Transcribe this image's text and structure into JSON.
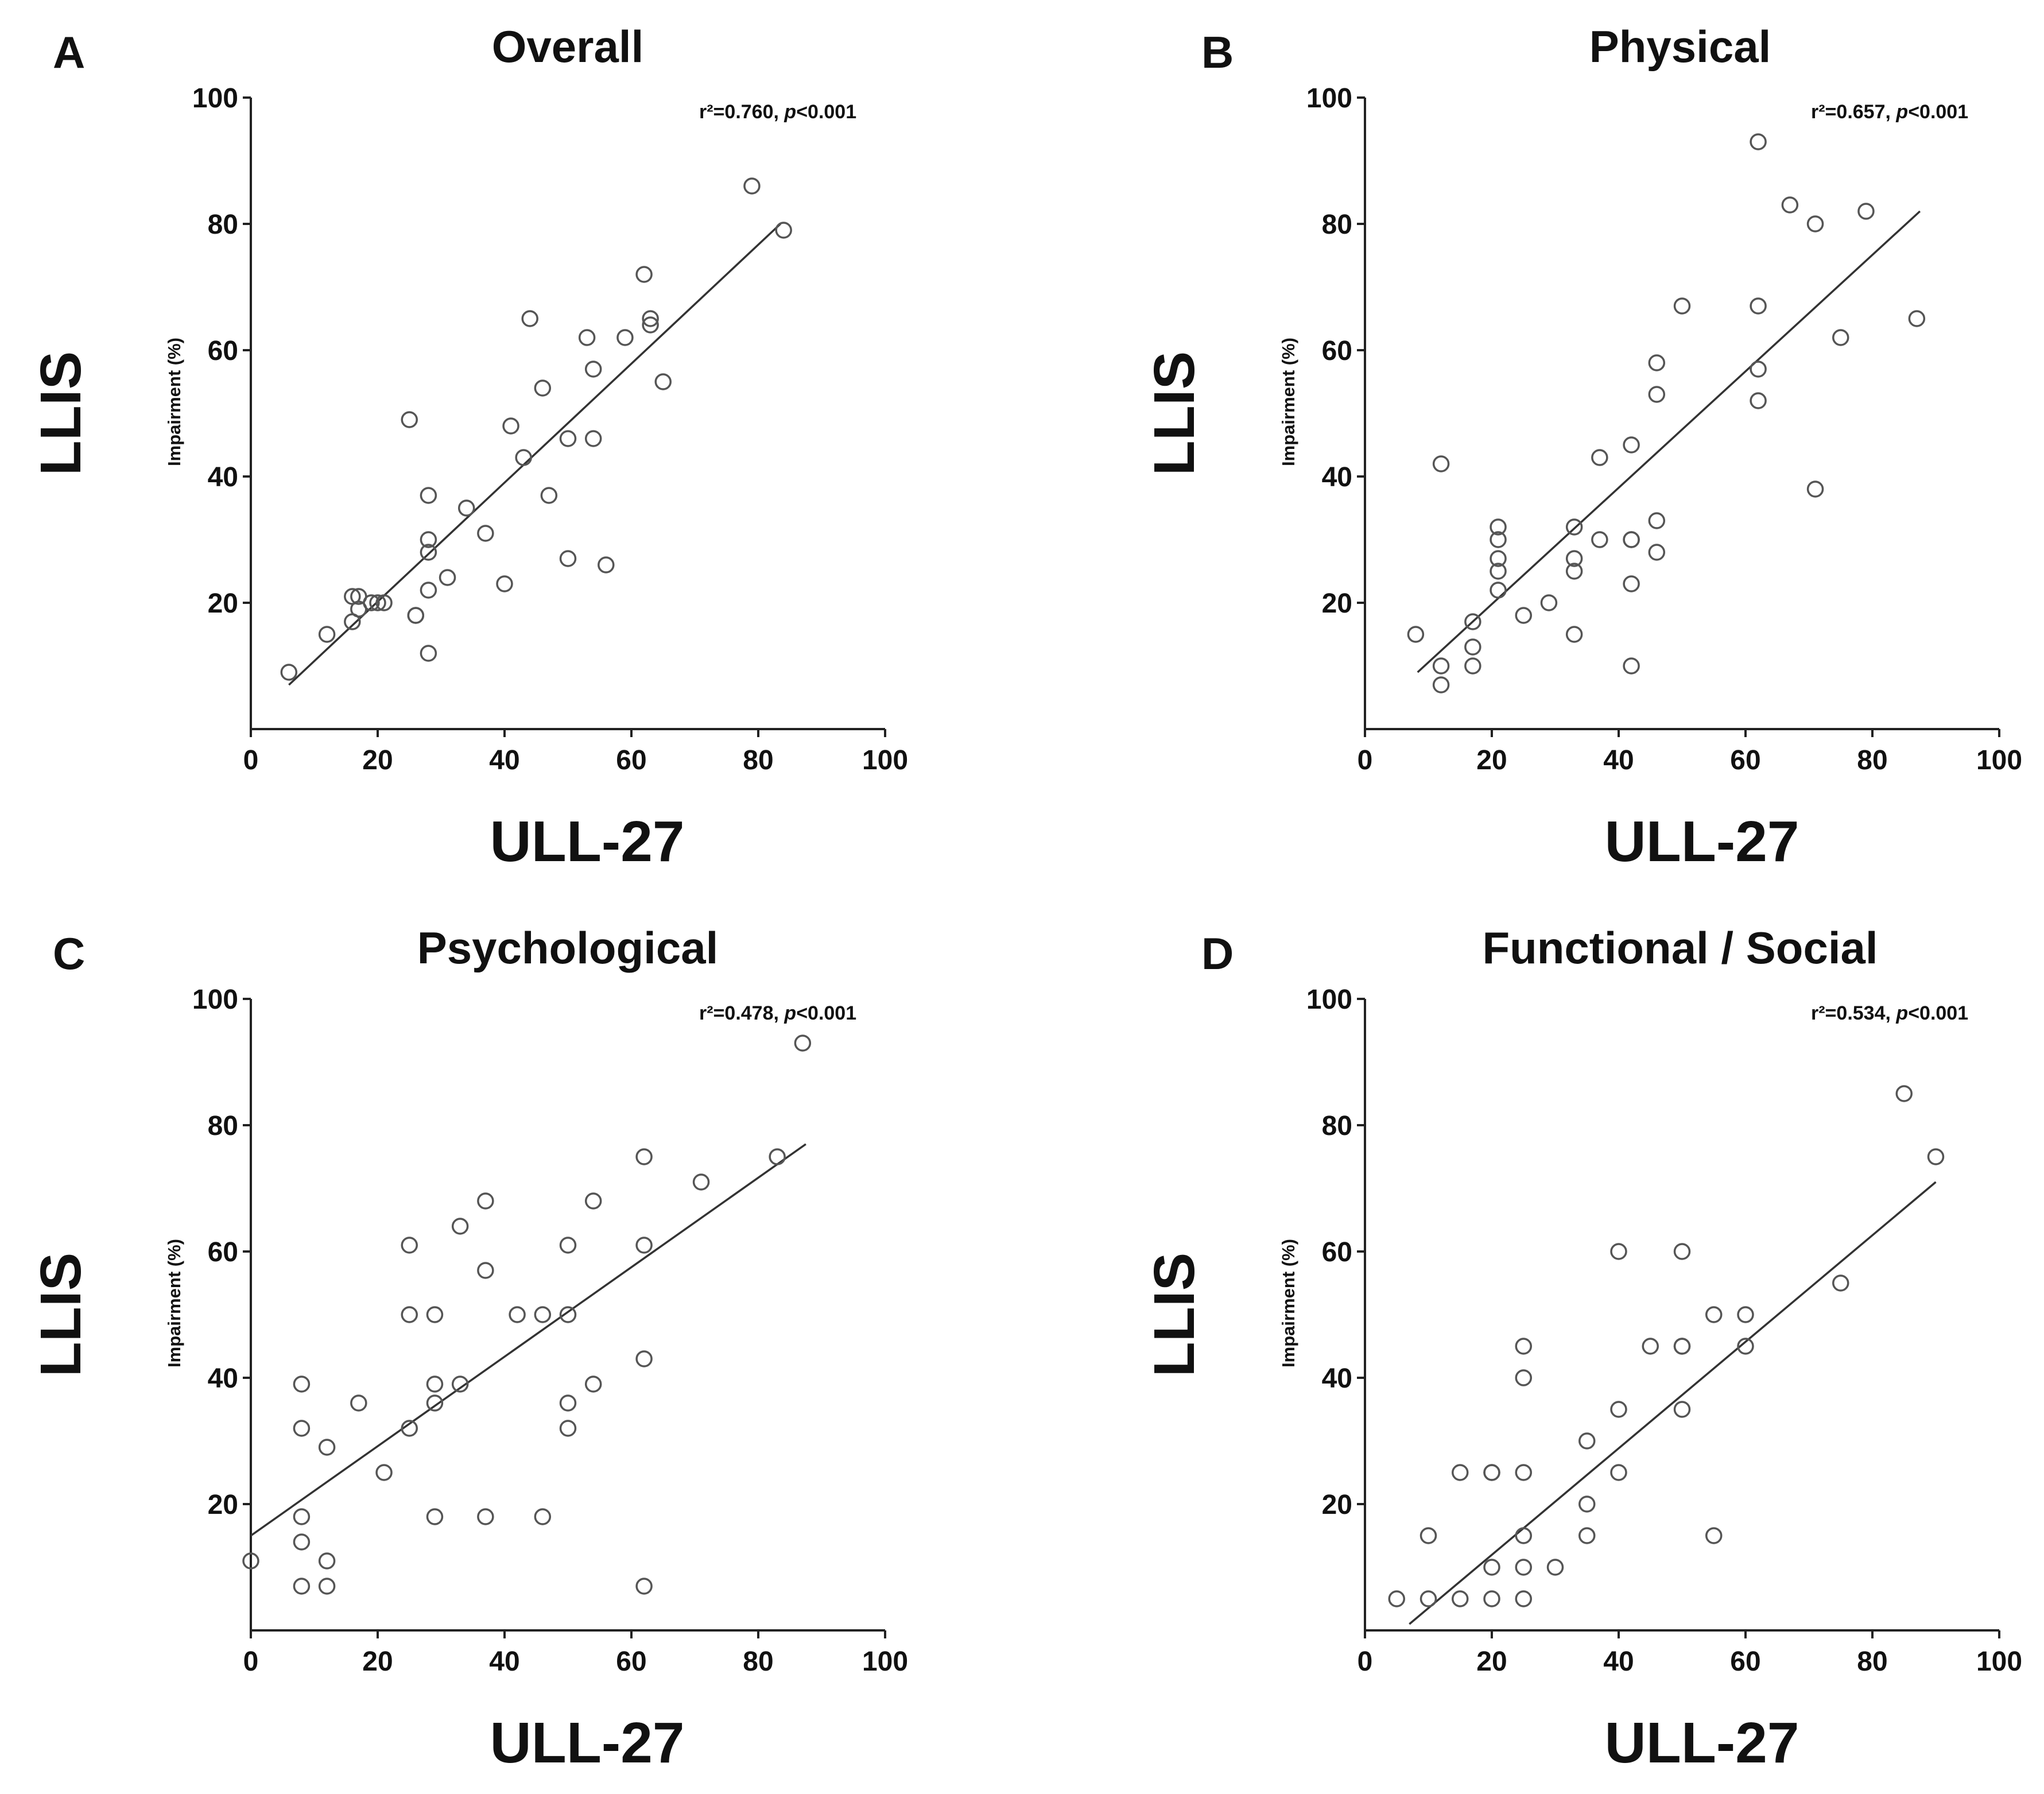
{
  "chart_data": [
    {
      "type": "scatter",
      "letter": "A",
      "title": "Overall",
      "xlabel": "ULL-27",
      "ylabel": "LLIS",
      "ylabel_inner": "Impairment (%)",
      "stat_r2": "r²=0.760,",
      "stat_p_sym": "p",
      "stat_p_val": "<0.001",
      "xlim": [
        0,
        100
      ],
      "ylim": [
        0,
        100
      ],
      "xticks": [
        "0",
        "20",
        "40",
        "60",
        "80",
        "100"
      ],
      "yticks": [
        "20",
        "40",
        "60",
        "80",
        "100"
      ],
      "fit": {
        "x": [
          6,
          83.5
        ],
        "y": [
          7,
          80
        ]
      },
      "points": [
        [
          6,
          9
        ],
        [
          12,
          15
        ],
        [
          16,
          21
        ],
        [
          17,
          21
        ],
        [
          16,
          17
        ],
        [
          17,
          19
        ],
        [
          19,
          20
        ],
        [
          20,
          20
        ],
        [
          21,
          20
        ],
        [
          26,
          18
        ],
        [
          26,
          18
        ],
        [
          25,
          49
        ],
        [
          28,
          37
        ],
        [
          28,
          30
        ],
        [
          28,
          28
        ],
        [
          28,
          22
        ],
        [
          28,
          12
        ],
        [
          31,
          24
        ],
        [
          34,
          35
        ],
        [
          37,
          31
        ],
        [
          40,
          23
        ],
        [
          41,
          48
        ],
        [
          43,
          43
        ],
        [
          44,
          65
        ],
        [
          46,
          54
        ],
        [
          47,
          37
        ],
        [
          50,
          46
        ],
        [
          50,
          27
        ],
        [
          53,
          62
        ],
        [
          54,
          57
        ],
        [
          54,
          46
        ],
        [
          56,
          26
        ],
        [
          59,
          62
        ],
        [
          62,
          72
        ],
        [
          63,
          65
        ],
        [
          63,
          64
        ],
        [
          65,
          55
        ],
        [
          79,
          86
        ],
        [
          84,
          79
        ]
      ]
    },
    {
      "type": "scatter",
      "letter": "B",
      "title": "Physical",
      "xlabel": "ULL-27",
      "ylabel": "LLIS",
      "ylabel_inner": "Impairment (%)",
      "stat_r2": "r²=0.657,",
      "stat_p_sym": "p",
      "stat_p_val": "<0.001",
      "xlim": [
        0,
        100
      ],
      "ylim": [
        0,
        100
      ],
      "xticks": [
        "0",
        "20",
        "40",
        "60",
        "80",
        "100"
      ],
      "yticks": [
        "20",
        "40",
        "60",
        "80",
        "100"
      ],
      "fit": {
        "x": [
          8.3,
          87.5
        ],
        "y": [
          9,
          82
        ]
      },
      "points": [
        [
          8,
          15
        ],
        [
          12,
          42
        ],
        [
          12,
          10
        ],
        [
          12,
          7
        ],
        [
          17,
          17
        ],
        [
          17,
          13
        ],
        [
          17,
          10
        ],
        [
          21,
          32
        ],
        [
          21,
          30
        ],
        [
          21,
          27
        ],
        [
          21,
          25
        ],
        [
          21,
          22
        ],
        [
          25,
          18
        ],
        [
          29,
          20
        ],
        [
          33,
          32
        ],
        [
          33,
          27
        ],
        [
          33,
          25
        ],
        [
          33,
          15
        ],
        [
          37,
          43
        ],
        [
          37,
          30
        ],
        [
          42,
          45
        ],
        [
          42,
          30
        ],
        [
          42,
          30
        ],
        [
          42,
          23
        ],
        [
          42,
          10
        ],
        [
          46,
          58
        ],
        [
          46,
          53
        ],
        [
          46,
          33
        ],
        [
          46,
          28
        ],
        [
          50,
          67
        ],
        [
          62,
          93
        ],
        [
          62,
          67
        ],
        [
          62,
          57
        ],
        [
          62,
          52
        ],
        [
          67,
          83
        ],
        [
          71,
          80
        ],
        [
          71,
          38
        ],
        [
          75,
          62
        ],
        [
          79,
          82
        ],
        [
          87,
          65
        ]
      ]
    },
    {
      "type": "scatter",
      "letter": "C",
      "title": "Psychological",
      "xlabel": "ULL-27",
      "ylabel": "LLIS",
      "ylabel_inner": "Impairment (%)",
      "stat_r2": "r²=0.478,",
      "stat_p_sym": "p",
      "stat_p_val": "<0.001",
      "xlim": [
        0,
        100
      ],
      "ylim": [
        0,
        100
      ],
      "xticks": [
        "0",
        "20",
        "40",
        "60",
        "80",
        "100"
      ],
      "yticks": [
        "20",
        "40",
        "60",
        "80",
        "100"
      ],
      "fit": {
        "x": [
          0,
          87.5
        ],
        "y": [
          15,
          77
        ]
      },
      "points": [
        [
          0,
          11
        ],
        [
          8,
          39
        ],
        [
          8,
          32
        ],
        [
          8,
          18
        ],
        [
          8,
          14
        ],
        [
          8,
          7
        ],
        [
          12,
          29
        ],
        [
          12,
          11
        ],
        [
          12,
          7
        ],
        [
          17,
          36
        ],
        [
          21,
          25
        ],
        [
          25,
          61
        ],
        [
          25,
          50
        ],
        [
          25,
          32
        ],
        [
          29,
          50
        ],
        [
          29,
          39
        ],
        [
          29,
          36
        ],
        [
          29,
          18
        ],
        [
          33,
          64
        ],
        [
          33,
          39
        ],
        [
          37,
          68
        ],
        [
          37,
          57
        ],
        [
          37,
          18
        ],
        [
          42,
          50
        ],
        [
          46,
          50
        ],
        [
          46,
          18
        ],
        [
          50,
          61
        ],
        [
          50,
          50
        ],
        [
          50,
          36
        ],
        [
          50,
          32
        ],
        [
          54,
          68
        ],
        [
          54,
          39
        ],
        [
          62,
          75
        ],
        [
          62,
          61
        ],
        [
          62,
          43
        ],
        [
          62,
          7
        ],
        [
          71,
          71
        ],
        [
          83,
          75
        ],
        [
          87,
          93
        ]
      ]
    },
    {
      "type": "scatter",
      "letter": "D",
      "title": "Functional / Social",
      "xlabel": "ULL-27",
      "ylabel": "LLIS",
      "ylabel_inner": "Impairment (%)",
      "stat_r2": "r²=0.534,",
      "stat_p_sym": "p",
      "stat_p_val": "<0.001",
      "xlim": [
        0,
        100
      ],
      "ylim": [
        0,
        100
      ],
      "xticks": [
        "0",
        "20",
        "40",
        "60",
        "80",
        "100"
      ],
      "yticks": [
        "20",
        "40",
        "60",
        "80",
        "100"
      ],
      "fit": {
        "x": [
          7,
          90
        ],
        "y": [
          1,
          71
        ]
      },
      "points": [
        [
          5,
          5
        ],
        [
          10,
          15
        ],
        [
          10,
          5
        ],
        [
          15,
          25
        ],
        [
          15,
          5
        ],
        [
          20,
          25
        ],
        [
          20,
          25
        ],
        [
          20,
          10
        ],
        [
          20,
          5
        ],
        [
          25,
          45
        ],
        [
          25,
          40
        ],
        [
          25,
          25
        ],
        [
          25,
          15
        ],
        [
          25,
          10
        ],
        [
          25,
          5
        ],
        [
          30,
          10
        ],
        [
          35,
          30
        ],
        [
          35,
          20
        ],
        [
          35,
          15
        ],
        [
          40,
          60
        ],
        [
          40,
          35
        ],
        [
          40,
          25
        ],
        [
          45,
          45
        ],
        [
          50,
          60
        ],
        [
          50,
          45
        ],
        [
          50,
          45
        ],
        [
          50,
          35
        ],
        [
          55,
          50
        ],
        [
          55,
          15
        ],
        [
          60,
          50
        ],
        [
          60,
          45
        ],
        [
          75,
          55
        ],
        [
          85,
          85
        ],
        [
          90,
          75
        ]
      ]
    }
  ]
}
